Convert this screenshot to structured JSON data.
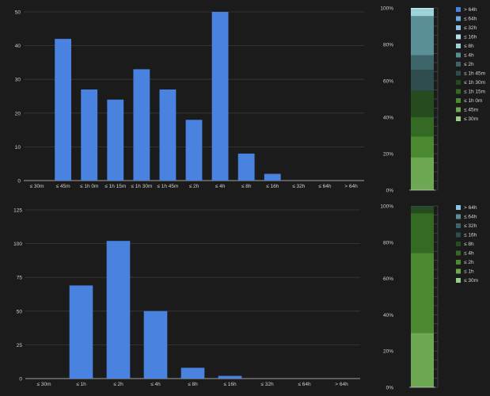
{
  "chart_data": [
    {
      "type": "bar",
      "categories": [
        "≤ 30m",
        "≤ 45m",
        "≤ 1h 0m",
        "≤ 1h 15m",
        "≤ 1h 30m",
        "≤ 1h 45m",
        "≤ 2h",
        "≤ 4h",
        "≤ 8h",
        "≤ 16h",
        "≤ 32h",
        "≤ 64h",
        "> 64h"
      ],
      "values": [
        0,
        42,
        27,
        24,
        33,
        27,
        18,
        50,
        8,
        2,
        0,
        0,
        0
      ],
      "ylim": [
        0,
        50
      ],
      "yticks": [
        0,
        10,
        20,
        30,
        40,
        50
      ],
      "grid": true,
      "bar_color": "#4a82e0"
    },
    {
      "type": "bar",
      "stacked": true,
      "percent": true,
      "ylim": [
        0,
        100
      ],
      "yticks": [
        "0%",
        "20%",
        "40%",
        "60%",
        "80%",
        "100%"
      ],
      "legend_position": "right",
      "series": [
        {
          "name": "≤ 30m",
          "value": 0,
          "color": "#9ccc86"
        },
        {
          "name": "≤ 45m",
          "value": 18,
          "color": "#6fa852"
        },
        {
          "name": "≤ 1h 0m",
          "value": 11.5,
          "color": "#4b8a30"
        },
        {
          "name": "≤ 1h 15m",
          "value": 10.5,
          "color": "#356a24"
        },
        {
          "name": "≤ 1h 30m",
          "value": 14.5,
          "color": "#264b1e"
        },
        {
          "name": "≤ 1h 45m",
          "value": 11.5,
          "color": "#2f4d4f"
        },
        {
          "name": "≤ 2h",
          "value": 8,
          "color": "#3c6469"
        },
        {
          "name": "≤ 4h",
          "value": 21.5,
          "color": "#5b8f98"
        },
        {
          "name": "≤ 8h",
          "value": 3.5,
          "color": "#9fd3dc"
        },
        {
          "name": "≤ 16h",
          "value": 1,
          "color": "#b8e2e8"
        },
        {
          "name": "≤ 32h",
          "value": 0,
          "color": "#8ec5ea"
        },
        {
          "name": "≤ 64h",
          "value": 0,
          "color": "#6ea7e6"
        },
        {
          "name": "> 64h",
          "value": 0,
          "color": "#4a82e0"
        }
      ]
    },
    {
      "type": "bar",
      "categories": [
        "≤ 30m",
        "≤ 1h",
        "≤ 2h",
        "≤ 4h",
        "≤ 8h",
        "≤ 16h",
        "≤ 32h",
        "≤ 64h",
        "> 64h"
      ],
      "values": [
        0,
        69,
        102,
        50,
        8,
        2,
        0,
        0,
        0
      ],
      "ylim": [
        0,
        125
      ],
      "yticks": [
        0,
        25,
        50,
        75,
        100,
        125
      ],
      "grid": true,
      "bar_color": "#4a82e0"
    },
    {
      "type": "bar",
      "stacked": true,
      "percent": true,
      "ylim": [
        0,
        100
      ],
      "yticks": [
        "0%",
        "20%",
        "40%",
        "60%",
        "80%",
        "100%"
      ],
      "legend_position": "right",
      "series": [
        {
          "name": "≤ 30m",
          "value": 0,
          "color": "#9ccc86"
        },
        {
          "name": "≤ 1h",
          "value": 30,
          "color": "#6fa852"
        },
        {
          "name": "≤ 2h",
          "value": 44,
          "color": "#4b8a30"
        },
        {
          "name": "≤ 4h",
          "value": 22,
          "color": "#356a24"
        },
        {
          "name": "≤ 8h",
          "value": 3.5,
          "color": "#264b1e"
        },
        {
          "name": "≤ 16h",
          "value": 0.5,
          "color": "#2f4d4f"
        },
        {
          "name": "≤ 32h",
          "value": 0,
          "color": "#3c6469"
        },
        {
          "name": "≤ 64h",
          "value": 0,
          "color": "#5b8f98"
        },
        {
          "name": "> 64h",
          "value": 0,
          "color": "#8ec5ea"
        }
      ]
    }
  ]
}
